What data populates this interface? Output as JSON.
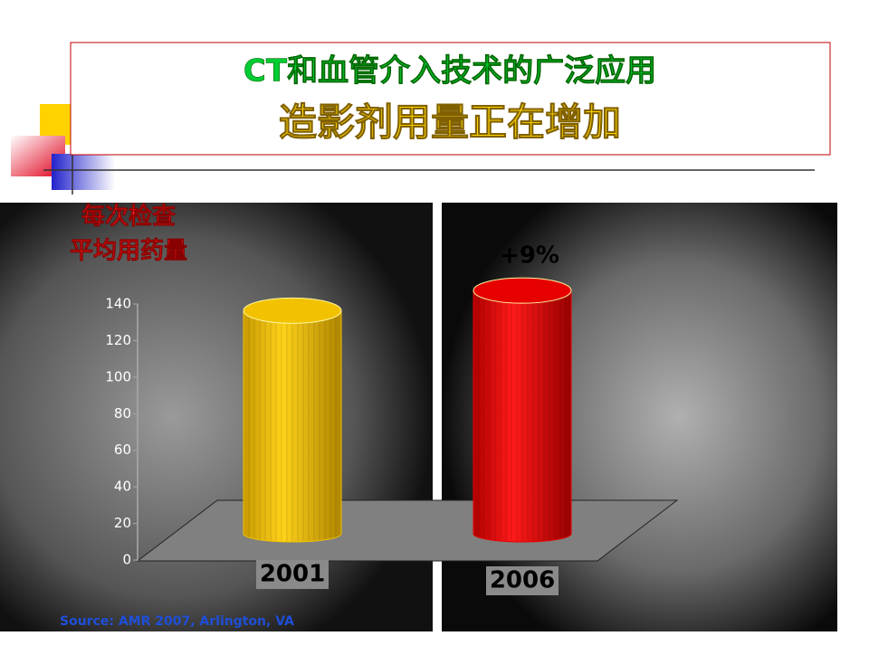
{
  "chart_data": {
    "type": "cylinder-bar",
    "title": "CT和血管介入技术的广泛应用",
    "subtitle": "造影剂用量正在增加",
    "y_label_lines": [
      "每次检查",
      "平均用药量"
    ],
    "categories": [
      "2001",
      "2006"
    ],
    "series": [
      {
        "name": "每次检查平均用药量",
        "colors": [
          "#f2c200",
          "#e60000"
        ],
        "values": [
          122,
          133
        ]
      }
    ],
    "annotation": "+9%",
    "ylim": [
      0,
      140
    ],
    "yticks": [
      0,
      20,
      40,
      60,
      80,
      100,
      120,
      140
    ],
    "source": "Source: AMR 2007, Arlington, VA"
  }
}
